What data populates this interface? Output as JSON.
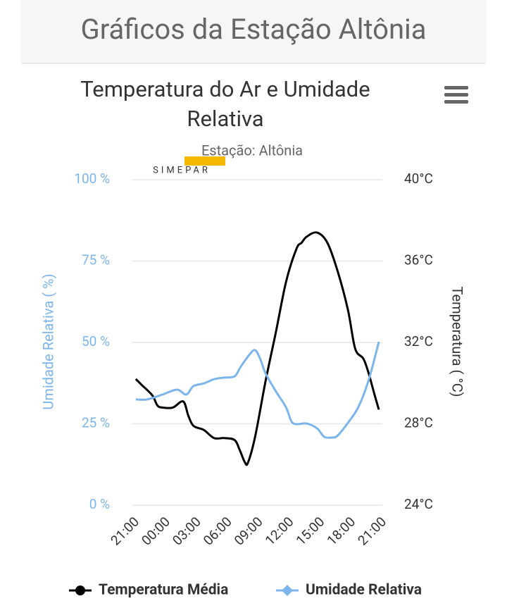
{
  "header": {
    "title": "Gráficos da Estação Altônia"
  },
  "chart_data": {
    "type": "line",
    "title": "Temperatura do Ar e Umidade Relativa",
    "subtitle": "Estação: Altônia",
    "logo": "SIMEPAR",
    "y_label": "Umidade Relativa ( %)",
    "y2_label": "Temperatura ( °C)",
    "xlim": [
      0,
      24
    ],
    "xticks": [
      {
        "value": 0,
        "label": "21:00"
      },
      {
        "value": 3,
        "label": "00:00"
      },
      {
        "value": 6,
        "label": "03:00"
      },
      {
        "value": 9,
        "label": "06:00"
      },
      {
        "value": 12,
        "label": "09:00"
      },
      {
        "value": 15,
        "label": "12:00"
      },
      {
        "value": 18,
        "label": "15:00"
      },
      {
        "value": 21,
        "label": "18:00"
      },
      {
        "value": 24,
        "label": "21:00"
      }
    ],
    "ylim": [
      0,
      100
    ],
    "yticks": [
      {
        "value": 0,
        "label": "0 %"
      },
      {
        "value": 25,
        "label": "25 %"
      },
      {
        "value": 50,
        "label": "50 %"
      },
      {
        "value": 75,
        "label": "75 %"
      },
      {
        "value": 100,
        "label": "100 %"
      }
    ],
    "y2lim": [
      24,
      40
    ],
    "y2ticks": [
      {
        "value": 24,
        "label": "24°C"
      },
      {
        "value": 28,
        "label": "28°C"
      },
      {
        "value": 32,
        "label": "32°C"
      },
      {
        "value": 36,
        "label": "36°C"
      },
      {
        "value": 40,
        "label": "40°C"
      }
    ],
    "grid": true,
    "legend": "bottom",
    "series": [
      {
        "name": "Temperatura Média",
        "color": "#000000",
        "axis": "y2",
        "marker": "circle",
        "x": [
          0.4,
          1,
          2,
          2.5,
          3,
          4,
          5,
          5.5,
          6,
          7,
          8,
          9,
          10,
          10.5,
          11,
          11.3,
          12,
          13,
          14,
          15,
          16,
          16.5,
          17,
          18,
          19,
          20,
          21,
          21.7,
          22.5,
          23,
          23.6,
          24
        ],
        "values": [
          30.2,
          29.9,
          29.4,
          28.9,
          28.8,
          28.8,
          29.1,
          28.4,
          27.9,
          27.7,
          27.3,
          27.3,
          27.2,
          26.7,
          26.1,
          26.1,
          27.4,
          30.1,
          32.5,
          35.0,
          36.6,
          36.9,
          37.2,
          37.4,
          36.9,
          35.5,
          33.6,
          31.7,
          31.2,
          30.5,
          29.4,
          28.7
        ]
      },
      {
        "name": "Umidade Relativa",
        "color": "#7cb5ec",
        "axis": "y",
        "marker": "diamond",
        "x": [
          0.4,
          1.5,
          3,
          4.4,
          5.3,
          6,
          7,
          8,
          9,
          10,
          10.6,
          11.5,
          12,
          12.5,
          13,
          14,
          15,
          15.5,
          16,
          17,
          18,
          18.7,
          19.5,
          20,
          21,
          22,
          23,
          24
        ],
        "values": [
          32.5,
          32.5,
          34,
          35.5,
          34,
          36.6,
          37.4,
          38.7,
          39.2,
          39.6,
          42.6,
          46.5,
          47.6,
          44.8,
          40.5,
          35,
          30,
          25.8,
          24.9,
          25.1,
          23.6,
          21,
          20.8,
          21.4,
          25.3,
          30.1,
          38.3,
          50.2
        ]
      }
    ]
  }
}
